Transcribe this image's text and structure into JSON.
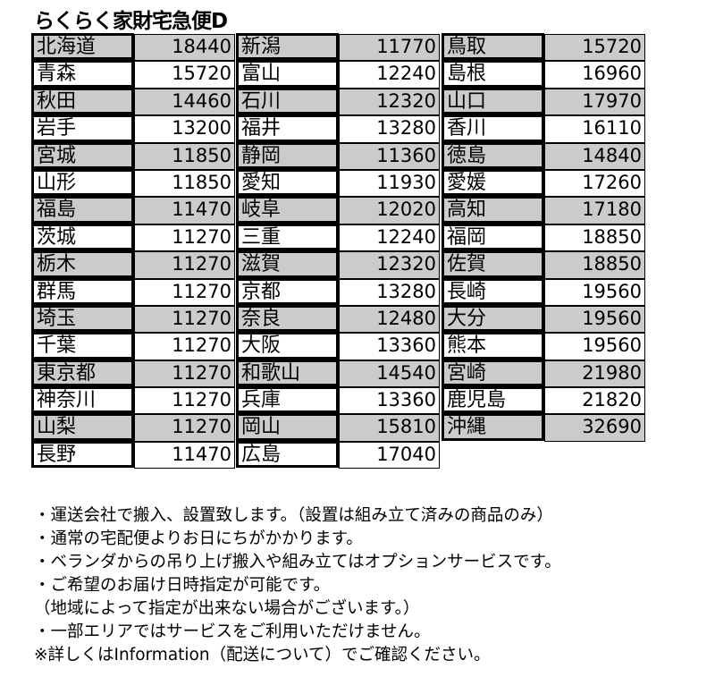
{
  "title": "らくらく家財宅急便D",
  "groups": [
    [
      [
        "北海道",
        "18440"
      ],
      [
        "青森",
        "15720"
      ],
      [
        "秋田",
        "14460"
      ],
      [
        "岩手",
        "13200"
      ],
      [
        "宮城",
        "11850"
      ],
      [
        "山形",
        "11850"
      ],
      [
        "福島",
        "11470"
      ],
      [
        "茨城",
        "11270"
      ],
      [
        "栃木",
        "11270"
      ],
      [
        "群馬",
        "11270"
      ],
      [
        "埼玉",
        "11270"
      ],
      [
        "千葉",
        "11270"
      ],
      [
        "東京都",
        "11270"
      ],
      [
        "神奈川",
        "11270"
      ],
      [
        "山梨",
        "11270"
      ],
      [
        "長野",
        "11470"
      ]
    ],
    [
      [
        "新潟",
        "11770"
      ],
      [
        "富山",
        "12240"
      ],
      [
        "石川",
        "12320"
      ],
      [
        "福井",
        "13280"
      ],
      [
        "静岡",
        "11360"
      ],
      [
        "愛知",
        "11930"
      ],
      [
        "岐阜",
        "12020"
      ],
      [
        "三重",
        "12240"
      ],
      [
        "滋賀",
        "12320"
      ],
      [
        "京都",
        "13280"
      ],
      [
        "奈良",
        "12480"
      ],
      [
        "大阪",
        "13360"
      ],
      [
        "和歌山",
        "14540"
      ],
      [
        "兵庫",
        "13360"
      ],
      [
        "岡山",
        "15810"
      ],
      [
        "広島",
        "17040"
      ]
    ],
    [
      [
        "鳥取",
        "15720"
      ],
      [
        "島根",
        "16960"
      ],
      [
        "山口",
        "17970"
      ],
      [
        "香川",
        "16110"
      ],
      [
        "徳島",
        "14840"
      ],
      [
        "愛媛",
        "17260"
      ],
      [
        "高知",
        "17180"
      ],
      [
        "福岡",
        "18850"
      ],
      [
        "佐賀",
        "18850"
      ],
      [
        "長崎",
        "19560"
      ],
      [
        "大分",
        "19560"
      ],
      [
        "熊本",
        "19560"
      ],
      [
        "宮崎",
        "21980"
      ],
      [
        "鹿児島",
        "21820"
      ],
      [
        "沖縄",
        "32690"
      ]
    ]
  ],
  "notes": [
    "・運送会社で搬入、設置致します。（設置は組み立て済みの商品のみ）",
    "・通常の宅配便よりお日にちがかかります。",
    "・ベランダからの吊り上げ搬入や組み立てはオプションサービスです。",
    "・ご希望のお届け日時指定が可能です。",
    "（地域によって指定が出来ない場合がございます。）",
    "・一部エリアではサービスをご利用いただけません。",
    "※詳しくはInformation（配送について）でご確認ください。"
  ],
  "colors": {
    "shade": "#cbcbcb"
  }
}
